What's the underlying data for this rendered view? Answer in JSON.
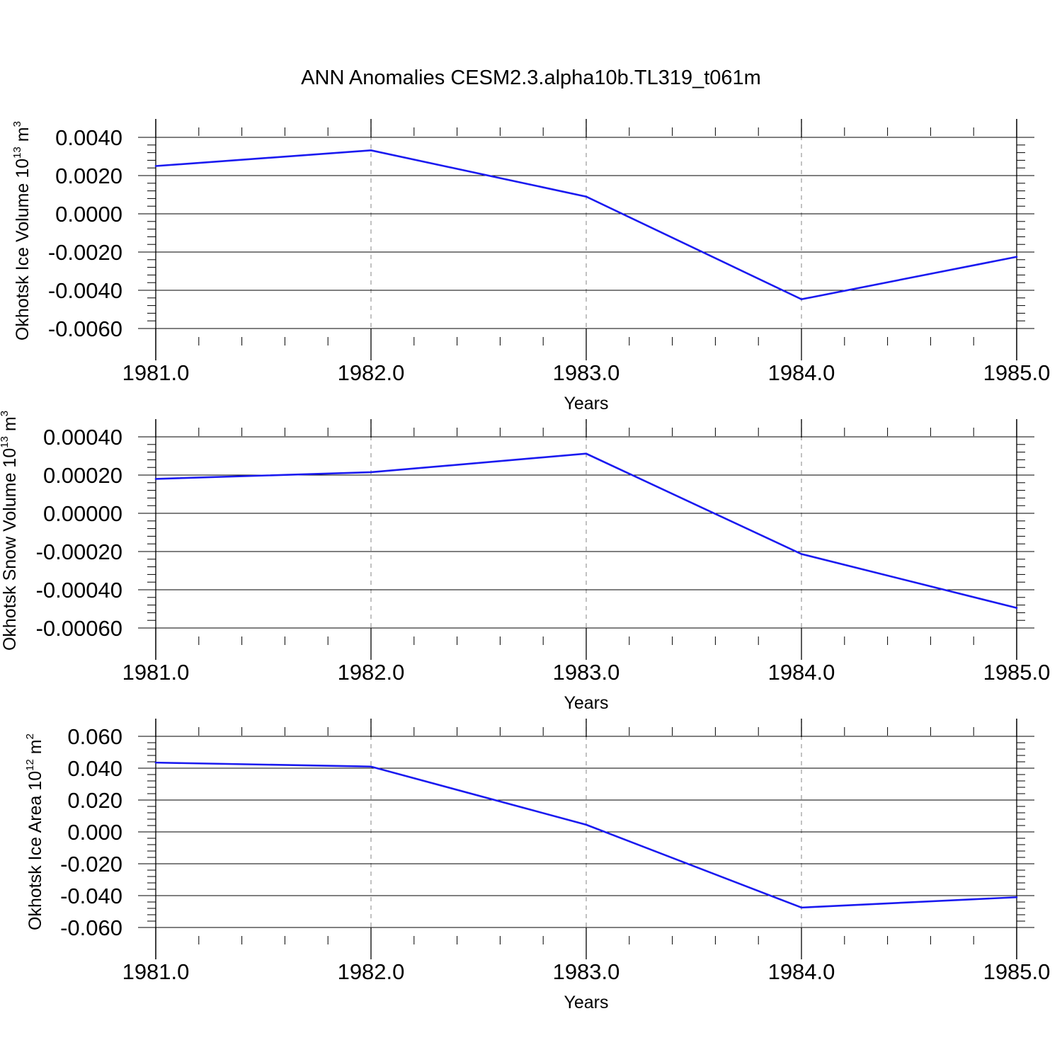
{
  "title": "ANN Anomalies CESM2.3.alpha10b.TL319_t061m",
  "colors": {
    "line": "#1a1af0",
    "axis": "#000000",
    "grid": "#9a9a9a"
  },
  "chart_data": [
    {
      "type": "line",
      "ylabel": "Okhotsk Ice Volume 10",
      "ylabel_exponent": "13",
      "ylabel_unit": " m",
      "ylabel_unit_exponent": "3",
      "xlabel": "Years",
      "xlim": [
        1980.95,
        1985.08
      ],
      "ylim": [
        -0.006,
        0.0045
      ],
      "x_ticks": [
        1981,
        1982,
        1983,
        1984,
        1985
      ],
      "x_tick_labels": [
        "1981.0",
        "1982.0",
        "1983.0",
        "1984.0",
        "1985.0"
      ],
      "y_ticks": [
        -0.006,
        -0.004,
        -0.002,
        0.0,
        0.002,
        0.004
      ],
      "y_tick_labels": [
        "-0.0060",
        "-0.0040",
        "-0.0020",
        "0.0000",
        "0.0020",
        "0.0040"
      ],
      "x": [
        1981,
        1982,
        1983,
        1984,
        1985
      ],
      "series": [
        {
          "values": [
            0.0025,
            0.00332,
            0.0009,
            -0.00447,
            -0.00225
          ]
        }
      ]
    },
    {
      "type": "line",
      "ylabel": "Okhotsk Snow Volume 10",
      "ylabel_exponent": "13",
      "ylabel_unit": " m",
      "ylabel_unit_exponent": "3",
      "xlabel": "Years",
      "xlim": [
        1980.95,
        1985.08
      ],
      "ylim": [
        -0.0006,
        0.00045
      ],
      "x_ticks": [
        1981,
        1982,
        1983,
        1984,
        1985
      ],
      "x_tick_labels": [
        "1981.0",
        "1982.0",
        "1983.0",
        "1984.0",
        "1985.0"
      ],
      "y_ticks": [
        -0.0006,
        -0.0004,
        -0.0002,
        0.0,
        0.0002,
        0.0004
      ],
      "y_tick_labels": [
        "-0.00060",
        "-0.00040",
        "-0.00020",
        "0.00000",
        "0.00020",
        "0.00040"
      ],
      "x": [
        1981,
        1982,
        1983,
        1984,
        1985
      ],
      "series": [
        {
          "values": [
            0.00018,
            0.000215,
            0.000312,
            -0.000213,
            -0.000495
          ]
        }
      ]
    },
    {
      "type": "line",
      "ylabel": "Okhotsk Ice Area 10",
      "ylabel_exponent": "12",
      "ylabel_unit": " m",
      "ylabel_unit_exponent": "2",
      "xlabel": "Years",
      "xlim": [
        1980.95,
        1985.08
      ],
      "ylim": [
        -0.06,
        0.07
      ],
      "x_ticks": [
        1981,
        1982,
        1983,
        1984,
        1985
      ],
      "x_tick_labels": [
        "1981.0",
        "1982.0",
        "1983.0",
        "1984.0",
        "1985.0"
      ],
      "y_ticks": [
        -0.06,
        -0.04,
        -0.02,
        0.0,
        0.02,
        0.04,
        0.06
      ],
      "y_tick_labels": [
        "-0.060",
        "-0.040",
        "-0.020",
        "0.000",
        "0.020",
        "0.040",
        "0.060"
      ],
      "x": [
        1981,
        1982,
        1983,
        1984,
        1985
      ],
      "series": [
        {
          "values": [
            0.0435,
            0.041,
            0.0045,
            -0.0475,
            -0.041
          ]
        }
      ]
    }
  ]
}
